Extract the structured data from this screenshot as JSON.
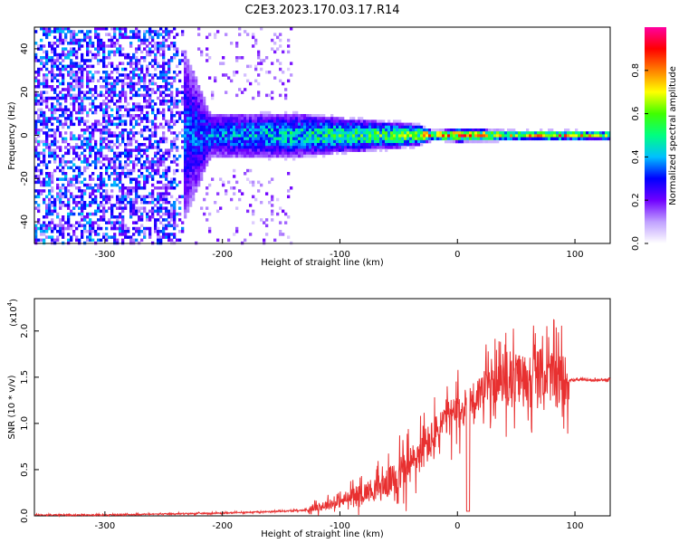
{
  "title": "C2E3.2023.170.03.17.R14",
  "chart_data": [
    {
      "type": "heatmap",
      "xlabel": "Height of straight line (km)",
      "ylabel": "Frequency (Hz)",
      "xlim": [
        -360,
        130
      ],
      "ylim": [
        -50,
        50
      ],
      "xticks": [
        -300,
        -200,
        -100,
        0,
        100
      ],
      "yticks": [
        -40,
        -20,
        0,
        20,
        40
      ],
      "colorbar": {
        "label": "Normalized spectral amplitude",
        "range": [
          0,
          1
        ],
        "ticks": [
          "0.0",
          "0.2",
          "0.4",
          "0.6",
          "0.8"
        ],
        "colormap": [
          "#ffffff",
          "#c0a0ff",
          "#7000ff",
          "#0000ff",
          "#00c0ff",
          "#00ff80",
          "#40ff00",
          "#ffff00",
          "#ff8000",
          "#ff0000",
          "#ff00a0"
        ]
      },
      "signal": {
        "x_range": [
          -360,
          130
        ],
        "center_freq": 0,
        "description_points": [
          {
            "x": -360,
            "spread": 50,
            "amp": 0.35
          },
          {
            "x": -240,
            "spread": 50,
            "amp": 0.3
          },
          {
            "x": -210,
            "spread": 10,
            "amp": 0.35
          },
          {
            "x": -140,
            "spread": 10,
            "amp": 0.45
          },
          {
            "x": -80,
            "spread": 7,
            "amp": 0.55
          },
          {
            "x": -35,
            "spread": 5,
            "amp": 0.6
          },
          {
            "x": -20,
            "spread": 2,
            "amp": 0.85
          },
          {
            "x": 0,
            "spread": 3,
            "amp": 0.8
          },
          {
            "x": 50,
            "spread": 2,
            "amp": 0.75
          },
          {
            "x": 80,
            "spread": 2,
            "amp": 0.85
          },
          {
            "x": 130,
            "spread": 2,
            "amp": 0.6
          }
        ]
      }
    },
    {
      "type": "line",
      "xlabel": "Height of straight line (km)",
      "ylabel": "SNR (10 * v/v)",
      "scale_label": "(x10",
      "scale_exp": "4",
      "scale_close": ")",
      "xlim": [
        -360,
        130
      ],
      "ylim": [
        0,
        2.35
      ],
      "xticks": [
        -300,
        -200,
        -100,
        0,
        100
      ],
      "yticks": [
        "0.0",
        "0.5",
        "1.0",
        "1.5",
        "2.0"
      ],
      "series": [
        {
          "color": "#e83030",
          "x": [
            -360,
            -300,
            -250,
            -200,
            -150,
            -130,
            -110,
            -100,
            -90,
            -80,
            -70,
            -60,
            -50,
            -40,
            -30,
            -20,
            -10,
            0,
            10,
            20,
            30,
            40,
            50,
            60,
            70,
            80,
            90,
            100,
            110,
            120,
            130
          ],
          "y": [
            0.01,
            0.01,
            0.02,
            0.03,
            0.05,
            0.06,
            0.12,
            0.15,
            0.2,
            0.25,
            0.3,
            0.35,
            0.45,
            0.55,
            0.7,
            0.85,
            1.05,
            1.1,
            1.2,
            1.35,
            1.42,
            1.45,
            1.48,
            1.5,
            1.55,
            1.5,
            1.47,
            1.47,
            1.47,
            1.47,
            1.47
          ]
        }
      ]
    }
  ]
}
